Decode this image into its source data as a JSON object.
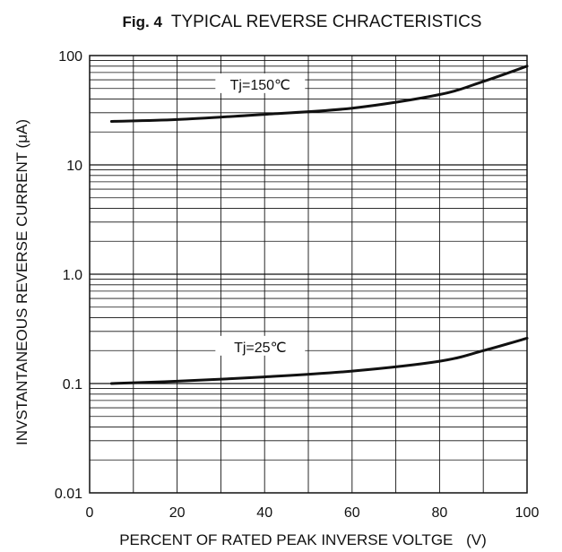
{
  "chart_data": {
    "type": "line",
    "title_prefix": "Fig. 4",
    "title": "TYPICAL REVERSE CHRACTERISTICS",
    "xlabel": "PERCENT OF RATED PEAK INVERSE VOLTGE",
    "xunit": "(V)",
    "ylabel": "INVSTANTANEOUS REVERSE CURRENT (μA)",
    "xlim": [
      0,
      100
    ],
    "ylim": [
      0.01,
      100
    ],
    "y_scale": "log",
    "x_ticks": [
      "0",
      "20",
      "40",
      "60",
      "80",
      "100"
    ],
    "y_ticks": [
      "0.01",
      "0.1",
      "1.0",
      "10",
      "100"
    ],
    "grid": true,
    "series": [
      {
        "name": "Tj=150℃",
        "x": [
          5,
          20,
          40,
          60,
          80,
          90,
          100
        ],
        "y": [
          25,
          26,
          29,
          33,
          44,
          58,
          80
        ]
      },
      {
        "name": "Tj=25℃",
        "x": [
          5,
          20,
          40,
          60,
          80,
          90,
          100
        ],
        "y": [
          0.1,
          0.105,
          0.115,
          0.13,
          0.16,
          0.2,
          0.26
        ]
      }
    ],
    "colors": {
      "line": "#111111",
      "grid": "#111111",
      "background": "#ffffff"
    }
  }
}
